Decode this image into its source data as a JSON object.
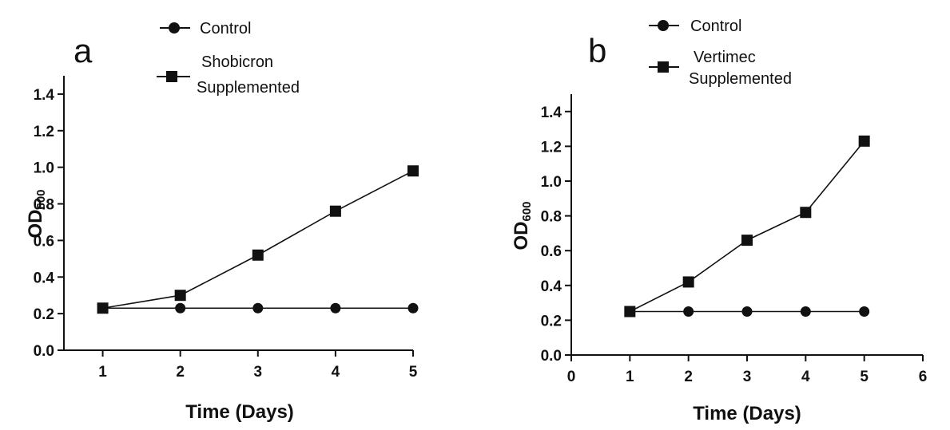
{
  "chart_data": [
    {
      "type": "line",
      "panel_label": "a",
      "x": [
        1,
        2,
        3,
        4,
        5
      ],
      "xticks": [
        1,
        2,
        3,
        4,
        5
      ],
      "yticks": [
        "0.0",
        "0.2",
        "0.4",
        "0.6",
        "0.8",
        "1.0",
        "1.2",
        "1.4"
      ],
      "xlim": [
        0.5,
        5
      ],
      "ylim": [
        0,
        1.5
      ],
      "xlabel": "Time (Days)",
      "ylabel_main": "OD",
      "ylabel_sub": "600",
      "grid": false,
      "legend_position": "top",
      "series": [
        {
          "name": "Control",
          "marker": "circle",
          "values": [
            0.23,
            0.23,
            0.23,
            0.23,
            0.23
          ]
        },
        {
          "name_lines": [
            "Shobicron",
            "Supplemented"
          ],
          "marker": "square",
          "values": [
            0.23,
            0.3,
            0.52,
            0.76,
            0.98
          ]
        }
      ]
    },
    {
      "type": "line",
      "panel_label": "b",
      "x": [
        1,
        2,
        3,
        4,
        5
      ],
      "xticks": [
        "0",
        "1",
        "2",
        "3",
        "4",
        "5",
        "6"
      ],
      "yticks": [
        "0.0",
        "0.2",
        "0.4",
        "0.6",
        "0.8",
        "1.0",
        "1.2",
        "1.4"
      ],
      "xlim": [
        0,
        6
      ],
      "ylim": [
        0,
        1.5
      ],
      "xlabel": "Time (Days)",
      "ylabel_main": "OD",
      "ylabel_sub": "600",
      "grid": false,
      "legend_position": "top",
      "series": [
        {
          "name": "Control",
          "marker": "circle",
          "values": [
            0.25,
            0.25,
            0.25,
            0.25,
            0.25
          ]
        },
        {
          "name_lines": [
            "Vertimec",
            "Supplemented"
          ],
          "marker": "square",
          "values": [
            0.25,
            0.42,
            0.66,
            0.82,
            1.23
          ]
        }
      ]
    }
  ],
  "colors": {
    "ink": "#111111",
    "background": "#ffffff"
  }
}
